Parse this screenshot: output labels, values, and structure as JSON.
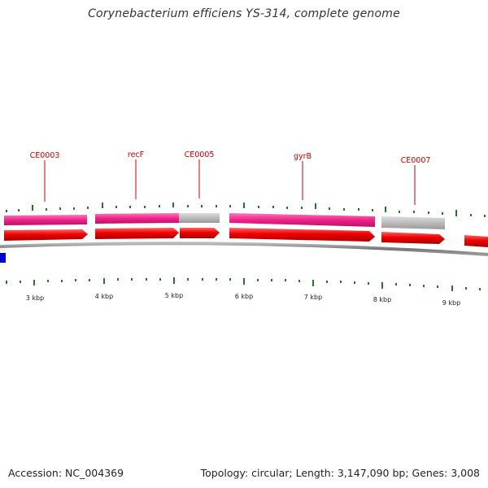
{
  "title": "Corynebacterium efficiens YS-314, complete genome",
  "footer": {
    "accession": "Accession: NC_004369",
    "summary": "Topology: circular; Length: 3,147,090 bp; Genes: 3,008"
  },
  "colors": {
    "cds_red": "#ee0000",
    "gene_pink": "#ee2288",
    "gene_grey": "#bbbbbb",
    "backbone": "#888888",
    "tick_green": "#227722",
    "label_red": "#cc0000",
    "blue_feature": "#0000dd"
  },
  "gene_labels": [
    "CE0003",
    "recF",
    "CE0005",
    "gyrB",
    "CE0007"
  ],
  "kbp_labels": [
    "3 kbp",
    "4 kbp",
    "5 kbp",
    "6 kbp",
    "7 kbp",
    "8 kbp",
    "9 kbp"
  ]
}
